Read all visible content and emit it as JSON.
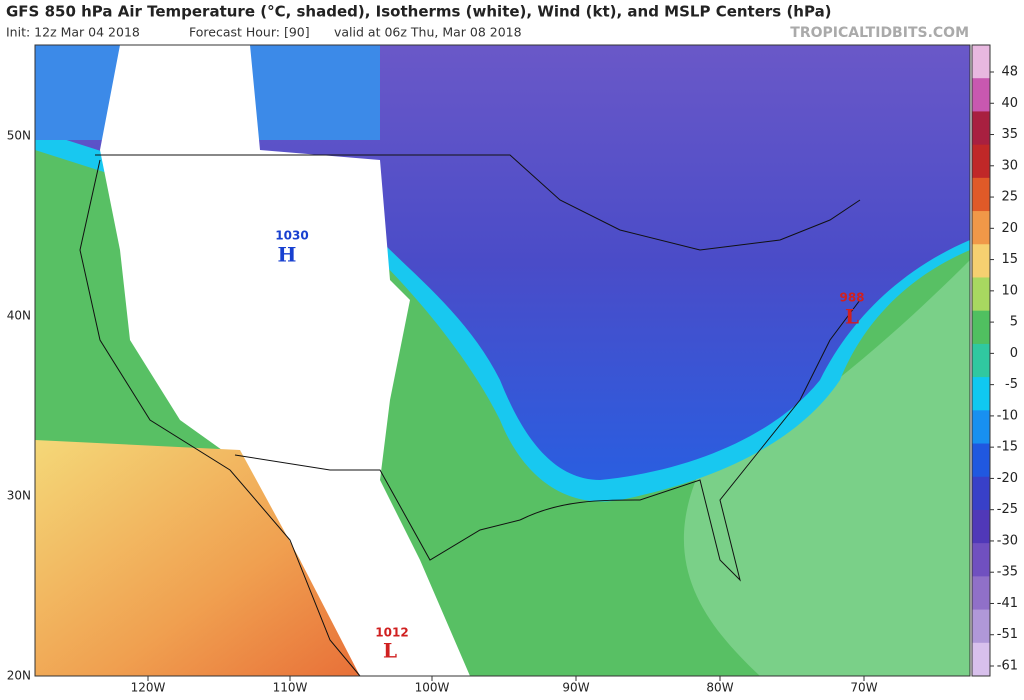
{
  "header": {
    "title": "GFS 850 hPa Air Temperature (°C, shaded), Isotherms (white), Wind (kt), and MSLP Centers (hPa)",
    "init": "Init: 12z Mar 04 2018",
    "forecast_hour": "Forecast Hour: [90]",
    "valid": "valid at 06z Thu, Mar 08 2018",
    "watermark": "TROPICALTIDBITS.COM"
  },
  "map": {
    "lat_labels": [
      "50N",
      "40N",
      "30N",
      "20N"
    ],
    "lon_labels": [
      "120W",
      "110W",
      "100W",
      "90W",
      "80W",
      "70W"
    ],
    "centers": [
      {
        "pressure": 1030,
        "symbol": "H"
      },
      {
        "pressure": 988,
        "symbol": "L"
      },
      {
        "pressure": 1012,
        "symbol": "L"
      }
    ]
  },
  "colorbar": {
    "labels": [
      48,
      40,
      35,
      30,
      25,
      20,
      15,
      10,
      5,
      0,
      -5,
      -10,
      -15,
      -20,
      -25,
      -30,
      -35,
      -41,
      -51,
      -61
    ],
    "colors": [
      "#e8b8e0",
      "#c858b0",
      "#a82040",
      "#c02828",
      "#e05a28",
      "#f09848",
      "#f6d070",
      "#a8d860",
      "#50c060",
      "#30c8a0",
      "#10c8f0",
      "#1890f0",
      "#2058e0",
      "#3840c8",
      "#5038b8",
      "#7050c0",
      "#9070c8",
      "#b098d8",
      "#d8c0ec"
    ]
  }
}
